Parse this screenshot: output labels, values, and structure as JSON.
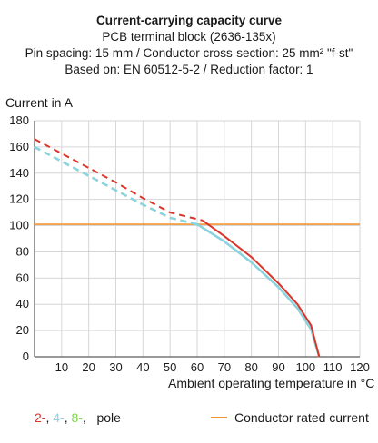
{
  "header": {
    "title": "Current-carrying capacity curve",
    "line2": "PCB terminal block (2636-135x)",
    "line3": "Pin spacing: 15 mm / Conductor cross-section: 25 mm² \"f-st\"",
    "line4": "Based on: EN 60512-5-2 / Reduction factor: 1"
  },
  "legend": {
    "poles": [
      {
        "label": "2-",
        "color": "#d9352a"
      },
      {
        "label": "4-",
        "color": "#8ad2e6"
      },
      {
        "label": "8-",
        "color": "#7cd64a"
      }
    ],
    "poles_suffix": "pole",
    "rated_label": "Conductor rated current",
    "rated_color": "#f29431"
  },
  "chart_data": {
    "type": "line",
    "xlabel": "Ambient operating temperature in °C",
    "ylabel": "Current in A",
    "xlim": [
      0,
      120
    ],
    "ylim": [
      0,
      180
    ],
    "xticks": [
      10,
      20,
      30,
      40,
      50,
      60,
      70,
      80,
      90,
      100,
      110,
      120
    ],
    "yticks": [
      0,
      20,
      40,
      60,
      80,
      100,
      120,
      140,
      160,
      180
    ],
    "grid": true,
    "series": [
      {
        "name": "2-",
        "color": "#d9352a",
        "dashed_points": [
          [
            0,
            166
          ],
          [
            10,
            155
          ],
          [
            20,
            144
          ],
          [
            30,
            133
          ],
          [
            40,
            121
          ],
          [
            50,
            110
          ],
          [
            62,
            104
          ]
        ],
        "solid_points": [
          [
            62,
            104
          ],
          [
            70,
            92
          ],
          [
            80,
            76
          ],
          [
            90,
            56
          ],
          [
            97,
            40
          ],
          [
            102,
            24
          ],
          [
            105,
            0
          ]
        ]
      },
      {
        "name": "4-",
        "color": "#8ad2e6",
        "dashed_points": [
          [
            0,
            160
          ],
          [
            10,
            149
          ],
          [
            20,
            138
          ],
          [
            30,
            127
          ],
          [
            40,
            116
          ],
          [
            50,
            106
          ],
          [
            60,
            101
          ]
        ],
        "solid_points": [
          [
            60,
            101
          ],
          [
            70,
            88
          ],
          [
            80,
            72
          ],
          [
            90,
            53
          ],
          [
            97,
            37
          ],
          [
            102,
            21
          ],
          [
            105,
            0
          ]
        ]
      },
      {
        "name": "8-",
        "color": "#7cd64a",
        "dashed_points": [
          [
            0,
            160
          ],
          [
            10,
            149
          ],
          [
            20,
            138
          ],
          [
            30,
            127
          ],
          [
            40,
            116
          ],
          [
            50,
            106
          ],
          [
            60,
            101
          ]
        ],
        "solid_points": [
          [
            60,
            101
          ],
          [
            70,
            88
          ],
          [
            80,
            72
          ],
          [
            90,
            53
          ],
          [
            97,
            37
          ],
          [
            102,
            21
          ],
          [
            105,
            0
          ]
        ]
      }
    ],
    "reference_line": {
      "name": "Conductor rated current",
      "y": 101,
      "color": "#f29431"
    }
  }
}
